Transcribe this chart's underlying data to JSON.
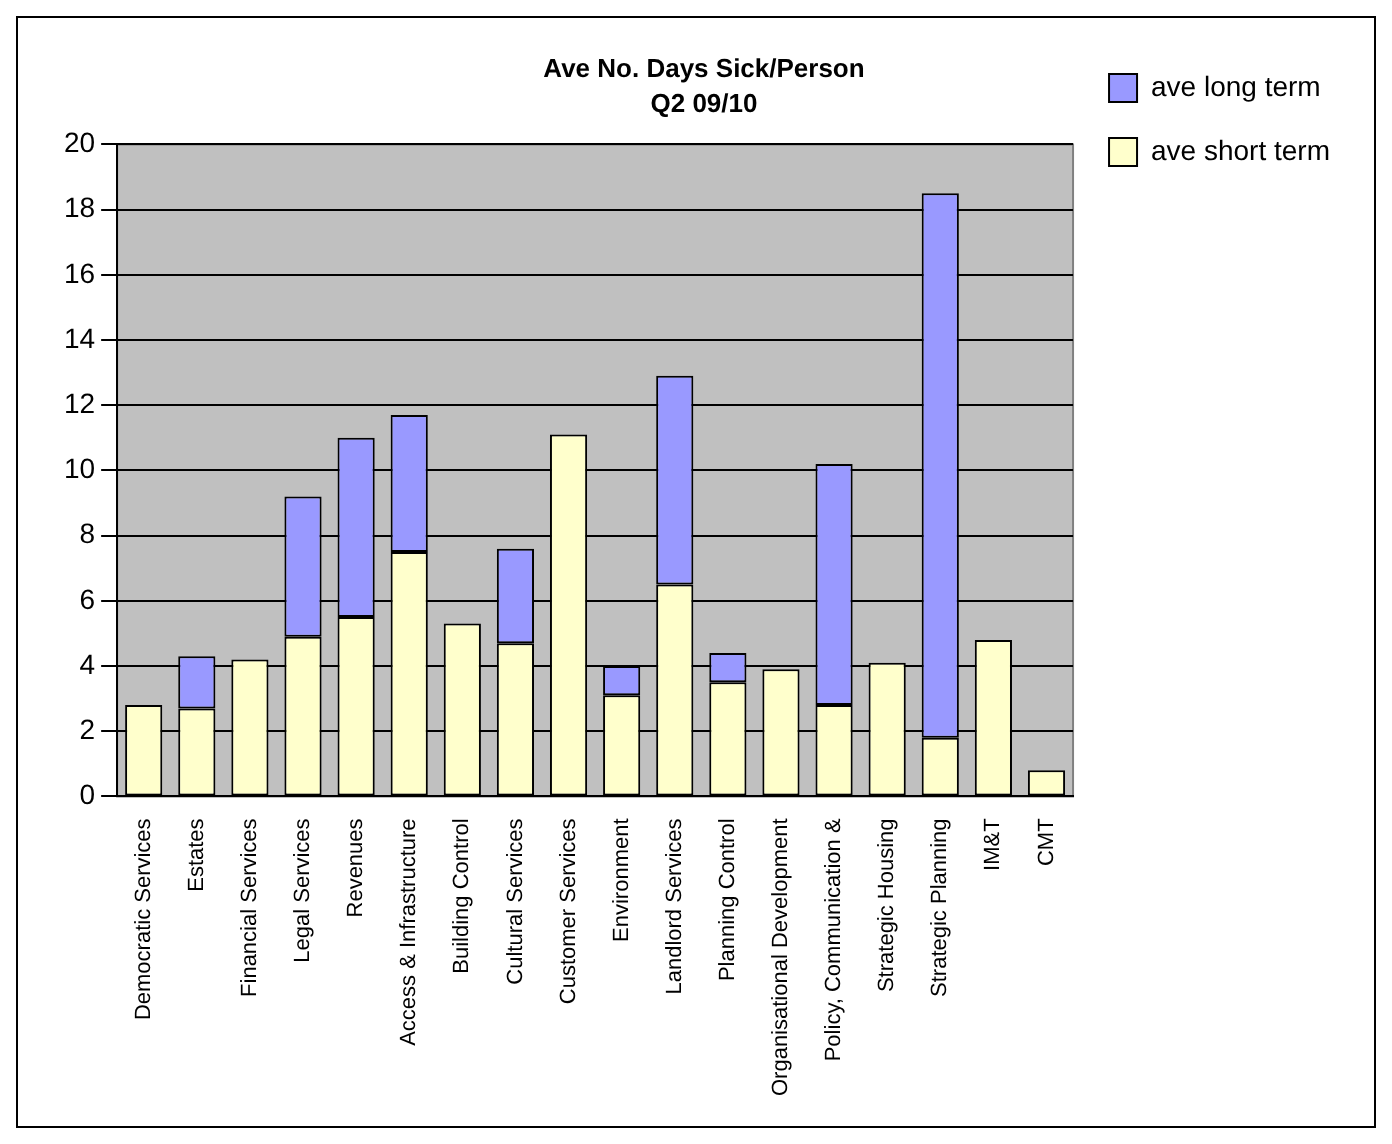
{
  "chart_data": {
    "type": "bar",
    "title": "Ave No. Days Sick/Person",
    "subtitle": "Q2 09/10",
    "stacked": true,
    "categories": [
      "Democratic Services",
      "Estates",
      "Financial Services",
      "Legal Services",
      "Revenues",
      "Access & Infrastructure",
      "Building Control",
      "Cultural Services",
      "Customer Services",
      "Environment",
      "Landlord Services",
      "Planning Control",
      "Organisational Development",
      "Policy, Communication &",
      "Strategic Housing",
      "Strategic Planning",
      "IM&T",
      "CMT"
    ],
    "series": [
      {
        "name": "ave short term",
        "color": "#ffffcc",
        "values": [
          2.8,
          2.7,
          4.2,
          4.9,
          5.5,
          7.5,
          5.3,
          4.7,
          11.1,
          3.1,
          6.5,
          3.5,
          3.9,
          2.8,
          4.1,
          1.8,
          4.8,
          0.8
        ]
      },
      {
        "name": "ave long term",
        "color": "#9999ff",
        "values": [
          null,
          1.6,
          null,
          4.3,
          5.5,
          4.2,
          null,
          2.9,
          null,
          0.9,
          6.4,
          0.9,
          null,
          7.4,
          null,
          16.7,
          null,
          null
        ]
      }
    ],
    "ylim": [
      0,
      20
    ],
    "yticks": [
      0,
      2,
      4,
      6,
      8,
      10,
      12,
      14,
      16,
      18,
      20
    ],
    "grid": "y",
    "legend": "right"
  }
}
